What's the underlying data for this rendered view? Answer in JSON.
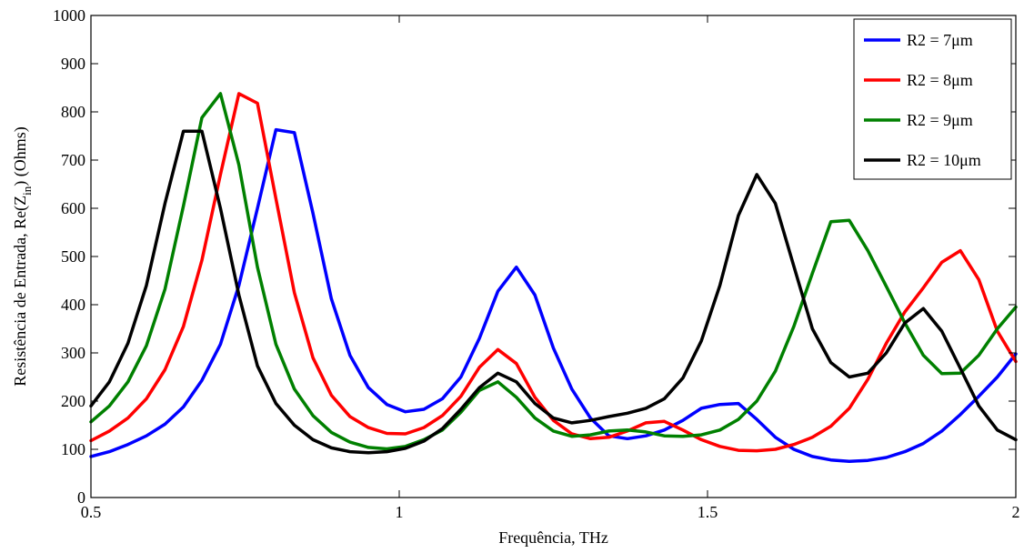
{
  "chart_data": {
    "type": "line",
    "title": "",
    "xlabel": "Frequência, THz",
    "ylabel_parts": [
      "Resistência de Entrada, Re(Z",
      "in",
      ") (Ohms)"
    ],
    "xlim": [
      0.5,
      2
    ],
    "ylim": [
      0,
      1000
    ],
    "xticks": [
      0.5,
      1,
      1.5,
      2
    ],
    "xtick_labels": [
      "0.5",
      "1",
      "1.5",
      "2"
    ],
    "yticks": [
      0,
      100,
      200,
      300,
      400,
      500,
      600,
      700,
      800,
      900,
      1000
    ],
    "ytick_labels": [
      "0",
      "100",
      "200",
      "300",
      "400",
      "500",
      "600",
      "700",
      "800",
      "900",
      "1000"
    ],
    "grid": false,
    "legend_position": "top-right",
    "x": [
      0.5,
      0.53,
      0.56,
      0.59,
      0.62,
      0.65,
      0.68,
      0.71,
      0.74,
      0.77,
      0.8,
      0.83,
      0.86,
      0.89,
      0.92,
      0.95,
      0.98,
      1.01,
      1.04,
      1.07,
      1.1,
      1.13,
      1.16,
      1.19,
      1.22,
      1.25,
      1.28,
      1.31,
      1.34,
      1.37,
      1.4,
      1.43,
      1.46,
      1.49,
      1.52,
      1.55,
      1.58,
      1.61,
      1.64,
      1.67,
      1.7,
      1.73,
      1.76,
      1.79,
      1.82,
      1.85,
      1.88,
      1.91,
      1.94,
      1.97,
      2.0
    ],
    "series": [
      {
        "name": "R2 = 7μm",
        "color": "#0000ff",
        "values": [
          85,
          95,
          110,
          128,
          152,
          188,
          243,
          318,
          440,
          600,
          763,
          757,
          590,
          412,
          295,
          228,
          193,
          178,
          183,
          205,
          250,
          330,
          428,
          478,
          420,
          310,
          225,
          165,
          128,
          122,
          128,
          140,
          160,
          185,
          193,
          195,
          162,
          125,
          100,
          85,
          78,
          75,
          77,
          83,
          95,
          112,
          138,
          172,
          210,
          250,
          298
        ]
      },
      {
        "name": "R2 = 8μm",
        "color": "#ff0000",
        "values": [
          118,
          138,
          165,
          205,
          265,
          355,
          492,
          670,
          838,
          818,
          620,
          425,
          290,
          212,
          168,
          145,
          133,
          132,
          145,
          170,
          210,
          270,
          307,
          278,
          208,
          160,
          132,
          122,
          125,
          138,
          155,
          158,
          140,
          120,
          106,
          98,
          97,
          100,
          110,
          125,
          148,
          185,
          245,
          320,
          385,
          435,
          488,
          512,
          452,
          345,
          282
        ]
      },
      {
        "name": "R2 = 9μm",
        "color": "#008000",
        "values": [
          157,
          190,
          240,
          315,
          432,
          605,
          788,
          838,
          690,
          478,
          318,
          225,
          170,
          135,
          115,
          104,
          101,
          106,
          120,
          140,
          177,
          222,
          240,
          208,
          165,
          138,
          127,
          130,
          138,
          140,
          136,
          128,
          127,
          130,
          140,
          162,
          200,
          262,
          355,
          465,
          572,
          575,
          512,
          438,
          362,
          295,
          257,
          258,
          295,
          350,
          395
        ]
      },
      {
        "name": "R2 = 10μm",
        "color": "#000000",
        "values": [
          190,
          240,
          320,
          440,
          610,
          760,
          760,
          600,
          420,
          273,
          195,
          150,
          120,
          103,
          95,
          93,
          95,
          102,
          117,
          143,
          183,
          228,
          258,
          240,
          195,
          165,
          155,
          160,
          168,
          175,
          185,
          205,
          248,
          325,
          440,
          585,
          670,
          610,
          480,
          350,
          280,
          250,
          258,
          300,
          362,
          392,
          345,
          268,
          190,
          140,
          120
        ]
      }
    ]
  }
}
